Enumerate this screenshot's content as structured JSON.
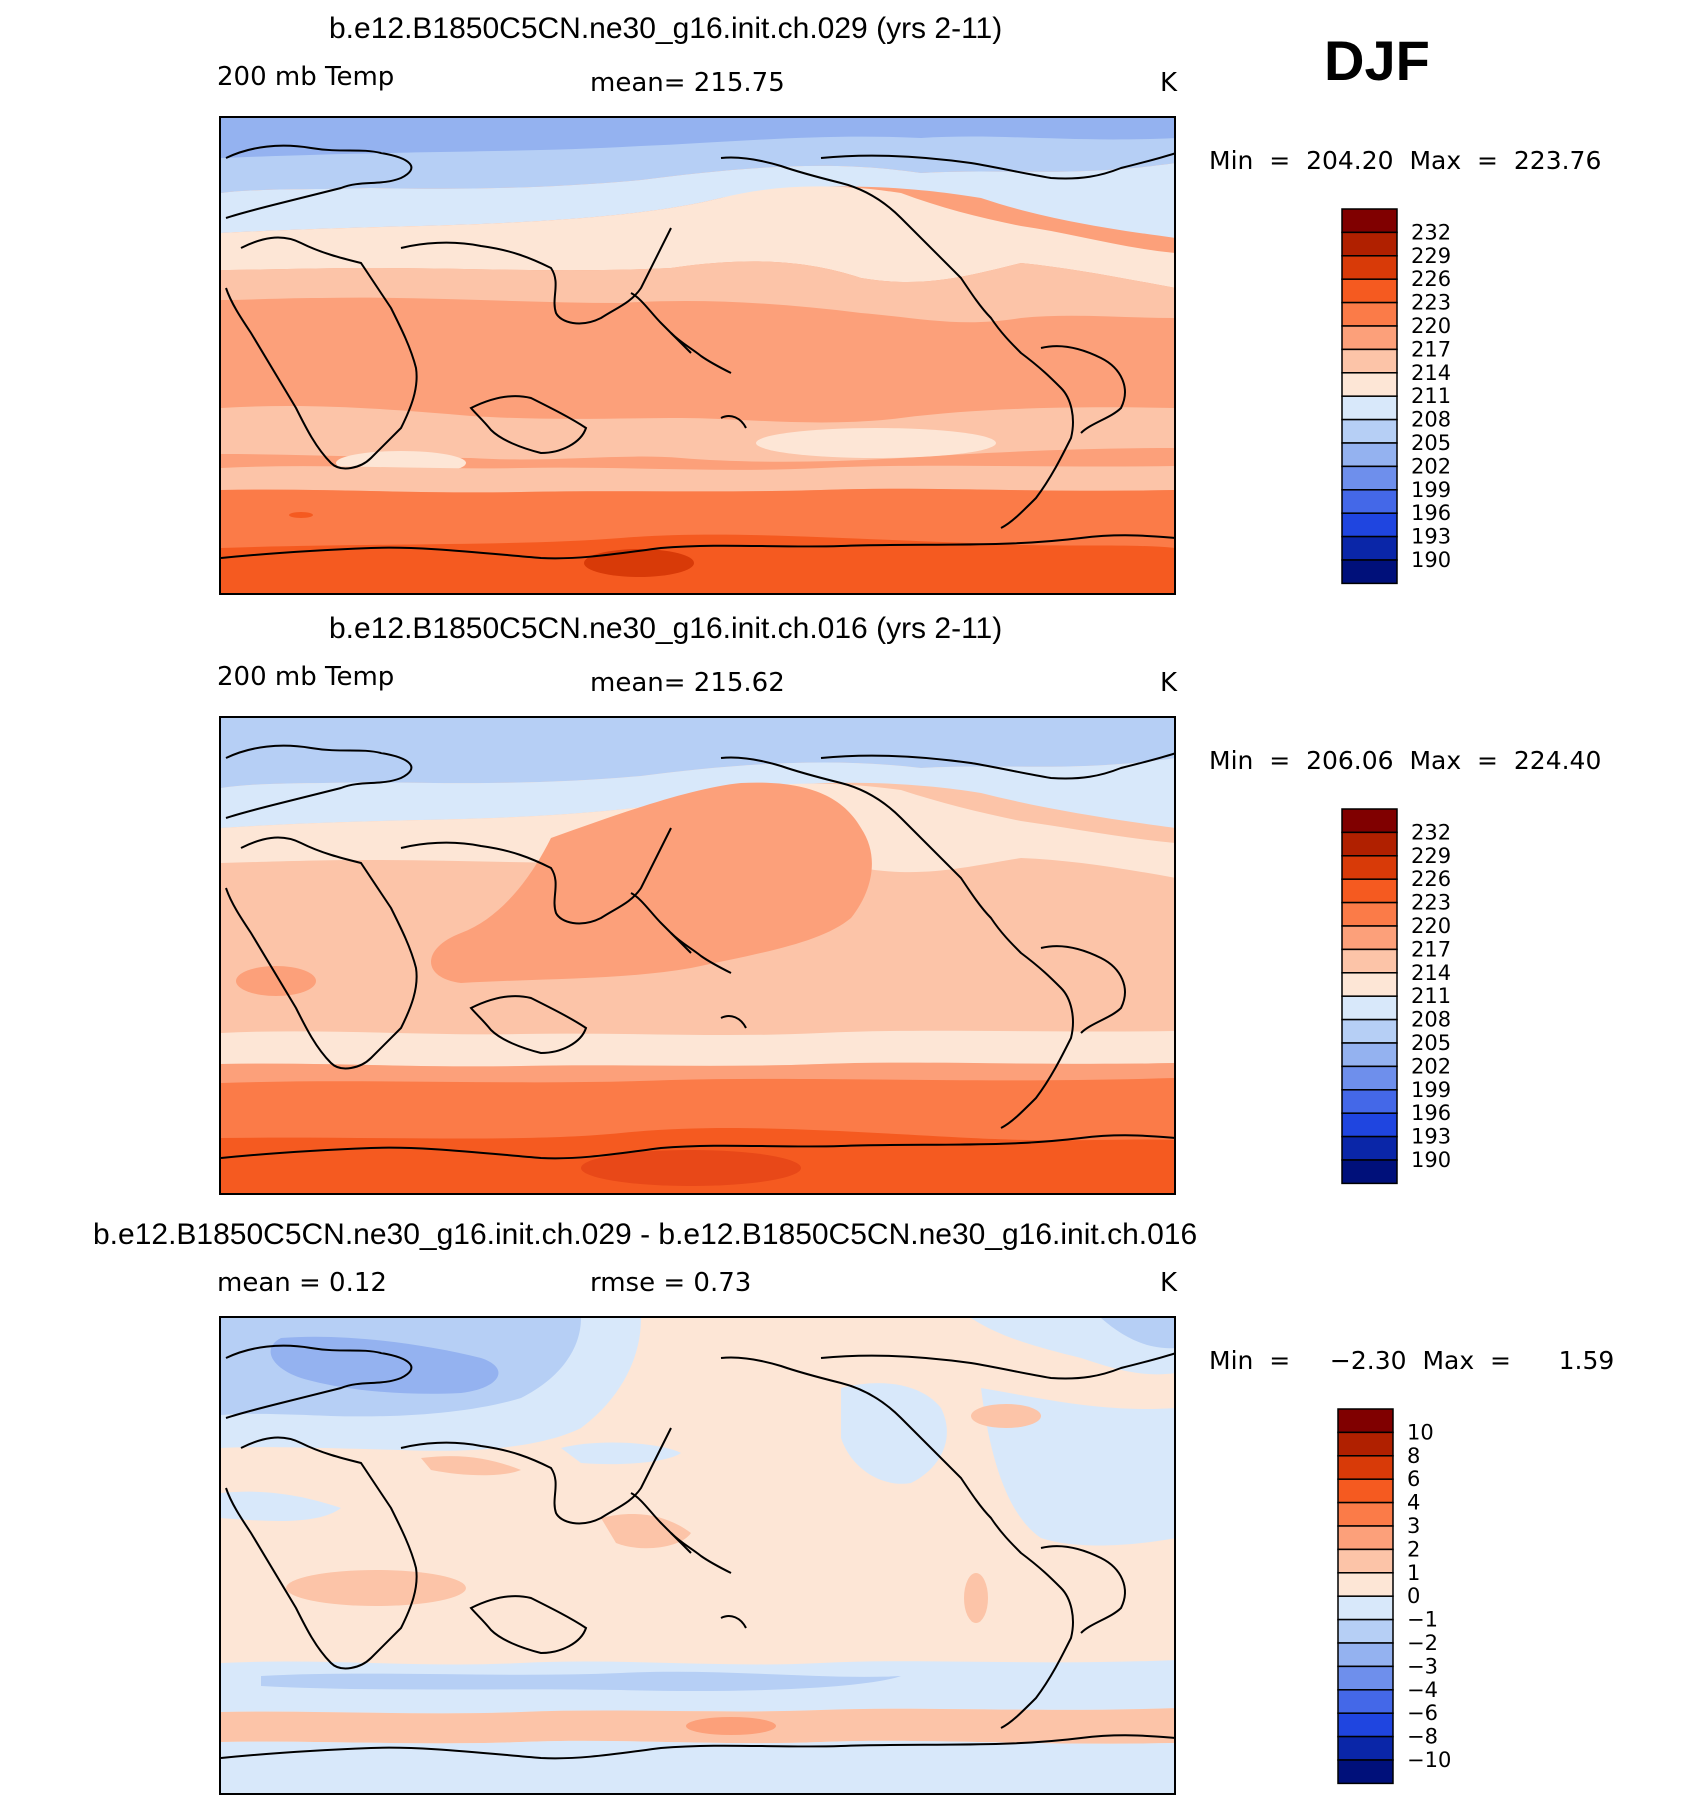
{
  "season": "DJF",
  "panels": [
    {
      "title": "b.e12.B1850C5CN.ne30_g16.init.ch.029 (yrs 2-11)",
      "left": "200 mb Temp",
      "center": "mean=  215.75",
      "right": "K",
      "minmax": "Min  =  204.20  Max  =  223.76"
    },
    {
      "title": "b.e12.B1850C5CN.ne30_g16.init.ch.016 (yrs 2-11)",
      "left": "200 mb Temp",
      "center": "mean=  215.62",
      "right": "K",
      "minmax": "Min  =  206.06  Max  =  224.40"
    },
    {
      "title": "b.e12.B1850C5CN.ne30_g16.init.ch.029 - b.e12.B1850C5CN.ne30_g16.init.ch.016",
      "left": "mean =       0.12",
      "center": "rmse  =      0.73",
      "right": "K",
      "minmax": "Min  =     −2.30  Max  =      1.59"
    }
  ],
  "chart_data": [
    {
      "type": "heatmap",
      "title": "b.e12.B1850C5CN.ne30_g16.init.ch.029 (yrs 2-11)",
      "variable": "200 mb Temp",
      "units": "K",
      "mean": 215.75,
      "min": 204.2,
      "max": 223.76,
      "colorbar_levels": [
        "232",
        "229",
        "226",
        "223",
        "220",
        "217",
        "214",
        "211",
        "208",
        "205",
        "202",
        "199",
        "196",
        "193",
        "190"
      ],
      "colorbar_colors": [
        "#800000",
        "#b02000",
        "#d83a08",
        "#f55a20",
        "#fb7b48",
        "#fca07a",
        "#fcc4a8",
        "#fde6d6",
        "#d8e8fa",
        "#b6cff5",
        "#94b2f0",
        "#6e8fec",
        "#4468e8",
        "#1f45e0",
        "#0a26a8",
        "#00107a"
      ]
    },
    {
      "type": "heatmap",
      "title": "b.e12.B1850C5CN.ne30_g16.init.ch.016 (yrs 2-11)",
      "variable": "200 mb Temp",
      "units": "K",
      "mean": 215.62,
      "min": 206.06,
      "max": 224.4,
      "colorbar_levels": [
        "232",
        "229",
        "226",
        "223",
        "220",
        "217",
        "214",
        "211",
        "208",
        "205",
        "202",
        "199",
        "196",
        "193",
        "190"
      ],
      "colorbar_colors": [
        "#800000",
        "#b02000",
        "#d83a08",
        "#f55a20",
        "#fb7b48",
        "#fca07a",
        "#fcc4a8",
        "#fde6d6",
        "#d8e8fa",
        "#b6cff5",
        "#94b2f0",
        "#6e8fec",
        "#4468e8",
        "#1f45e0",
        "#0a26a8",
        "#00107a"
      ]
    },
    {
      "type": "heatmap",
      "title": "b.e12.B1850C5CN.ne30_g16.init.ch.029 - b.e12.B1850C5CN.ne30_g16.init.ch.016",
      "units": "K",
      "mean": 0.12,
      "rmse": 0.73,
      "min": -2.3,
      "max": 1.59,
      "colorbar_levels": [
        "10",
        "8",
        "6",
        "4",
        "3",
        "2",
        "1",
        "0",
        "−1",
        "−2",
        "−3",
        "−4",
        "−6",
        "−8",
        "−10"
      ],
      "colorbar_colors": [
        "#800000",
        "#b02000",
        "#d83a08",
        "#f55a20",
        "#fb7b48",
        "#fca07a",
        "#fcc4a8",
        "#fde6d6",
        "#d8e8fa",
        "#b6cff5",
        "#94b2f0",
        "#6e8fec",
        "#4468e8",
        "#1f45e0",
        "#0a26a8",
        "#00107a"
      ]
    }
  ]
}
